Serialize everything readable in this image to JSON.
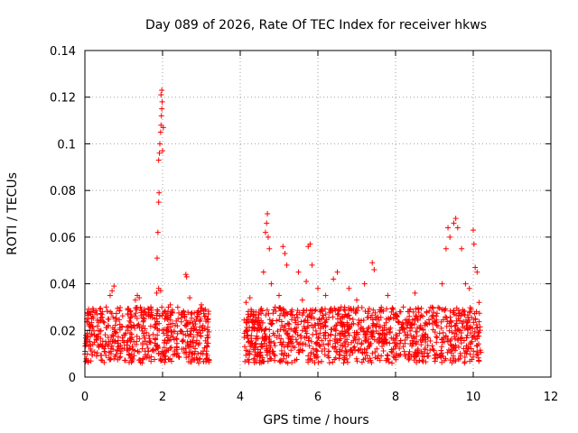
{
  "chart_data": {
    "type": "scatter",
    "title": "Day 089 of 2026, Rate Of TEC Index for receiver hkws",
    "xlabel": "GPS time / hours",
    "ylabel": "ROTI / TECUs",
    "xlim": [
      0,
      12
    ],
    "ylim": [
      0,
      0.14
    ],
    "xticks": [
      0,
      2,
      4,
      6,
      8,
      10,
      12
    ],
    "yticks": [
      0,
      0.02,
      0.04,
      0.06,
      0.08,
      0.1,
      0.12,
      0.14
    ],
    "xtick_labels": [
      "0",
      "2",
      "4",
      "6",
      "8",
      "10",
      "12"
    ],
    "ytick_labels": [
      "0",
      "0.02",
      "0.04",
      "0.06",
      "0.08",
      "0.1",
      "0.12",
      "0.14"
    ],
    "grid": true,
    "marker": "+",
    "color": "#ff0000",
    "series": [
      {
        "name": "ROTI",
        "segments": [
          {
            "x_range": [
              0.0,
              3.2
            ],
            "typical_range": [
              0.006,
              0.03
            ]
          },
          {
            "x_range": [
              4.1,
              10.2
            ],
            "typical_range": [
              0.006,
              0.03
            ]
          }
        ],
        "points": [
          [
            0.05,
            0.015
          ],
          [
            0.1,
            0.022
          ],
          [
            0.15,
            0.012
          ],
          [
            0.2,
            0.026
          ],
          [
            0.25,
            0.018
          ],
          [
            0.3,
            0.009
          ],
          [
            0.35,
            0.02
          ],
          [
            0.4,
            0.014
          ],
          [
            0.45,
            0.028
          ],
          [
            0.5,
            0.011
          ],
          [
            0.55,
            0.03
          ],
          [
            0.6,
            0.017
          ],
          [
            0.65,
            0.035
          ],
          [
            0.7,
            0.037
          ],
          [
            0.75,
            0.039
          ],
          [
            0.8,
            0.024
          ],
          [
            0.85,
            0.013
          ],
          [
            0.9,
            0.021
          ],
          [
            1.0,
            0.018
          ],
          [
            1.1,
            0.027
          ],
          [
            1.2,
            0.016
          ],
          [
            1.3,
            0.033
          ],
          [
            1.35,
            0.035
          ],
          [
            1.4,
            0.034
          ],
          [
            1.5,
            0.022
          ],
          [
            1.6,
            0.014
          ],
          [
            1.7,
            0.03
          ],
          [
            1.8,
            0.025
          ],
          [
            1.85,
            0.036
          ],
          [
            1.9,
            0.038
          ],
          [
            1.95,
            0.037
          ],
          [
            1.86,
            0.051
          ],
          [
            1.88,
            0.062
          ],
          [
            1.9,
            0.075
          ],
          [
            1.91,
            0.079
          ],
          [
            1.9,
            0.093
          ],
          [
            1.92,
            0.096
          ],
          [
            1.93,
            0.1
          ],
          [
            1.95,
            0.105
          ],
          [
            1.96,
            0.108
          ],
          [
            1.97,
            0.112
          ],
          [
            1.98,
            0.115
          ],
          [
            1.99,
            0.118
          ],
          [
            1.96,
            0.121
          ],
          [
            1.98,
            0.123
          ],
          [
            2.02,
            0.107
          ],
          [
            2.0,
            0.097
          ],
          [
            2.05,
            0.028
          ],
          [
            2.1,
            0.02
          ],
          [
            2.2,
            0.031
          ],
          [
            2.3,
            0.016
          ],
          [
            2.4,
            0.025
          ],
          [
            2.5,
            0.012
          ],
          [
            2.6,
            0.044
          ],
          [
            2.62,
            0.043
          ],
          [
            2.7,
            0.034
          ],
          [
            2.8,
            0.02
          ],
          [
            2.9,
            0.026
          ],
          [
            3.0,
            0.031
          ],
          [
            3.1,
            0.029
          ],
          [
            4.1,
            0.017
          ],
          [
            4.15,
            0.032
          ],
          [
            4.2,
            0.011
          ],
          [
            4.25,
            0.034
          ],
          [
            4.3,
            0.024
          ],
          [
            4.35,
            0.008
          ],
          [
            4.6,
            0.045
          ],
          [
            4.65,
            0.062
          ],
          [
            4.68,
            0.066
          ],
          [
            4.7,
            0.07
          ],
          [
            4.72,
            0.06
          ],
          [
            4.75,
            0.055
          ],
          [
            4.8,
            0.04
          ],
          [
            4.9,
            0.03
          ],
          [
            5.0,
            0.035
          ],
          [
            5.1,
            0.056
          ],
          [
            5.15,
            0.053
          ],
          [
            5.2,
            0.048
          ],
          [
            5.3,
            0.028
          ],
          [
            5.4,
            0.02
          ],
          [
            5.5,
            0.045
          ],
          [
            5.6,
            0.033
          ],
          [
            5.7,
            0.041
          ],
          [
            5.75,
            0.056
          ],
          [
            5.8,
            0.057
          ],
          [
            5.85,
            0.048
          ],
          [
            6.0,
            0.038
          ],
          [
            6.1,
            0.025
          ],
          [
            6.2,
            0.035
          ],
          [
            6.4,
            0.042
          ],
          [
            6.5,
            0.045
          ],
          [
            6.6,
            0.03
          ],
          [
            6.8,
            0.038
          ],
          [
            7.0,
            0.033
          ],
          [
            7.2,
            0.04
          ],
          [
            7.4,
            0.049
          ],
          [
            7.45,
            0.046
          ],
          [
            7.6,
            0.028
          ],
          [
            7.8,
            0.035
          ],
          [
            8.0,
            0.025
          ],
          [
            8.2,
            0.03
          ],
          [
            8.5,
            0.036
          ],
          [
            8.8,
            0.028
          ],
          [
            9.0,
            0.024
          ],
          [
            9.2,
            0.04
          ],
          [
            9.3,
            0.055
          ],
          [
            9.35,
            0.064
          ],
          [
            9.4,
            0.06
          ],
          [
            9.5,
            0.066
          ],
          [
            9.55,
            0.068
          ],
          [
            9.6,
            0.064
          ],
          [
            9.7,
            0.055
          ],
          [
            9.8,
            0.04
          ],
          [
            9.9,
            0.038
          ],
          [
            10.0,
            0.063
          ],
          [
            10.02,
            0.057
          ],
          [
            10.05,
            0.047
          ],
          [
            10.1,
            0.045
          ],
          [
            10.15,
            0.032
          ]
        ]
      }
    ]
  }
}
